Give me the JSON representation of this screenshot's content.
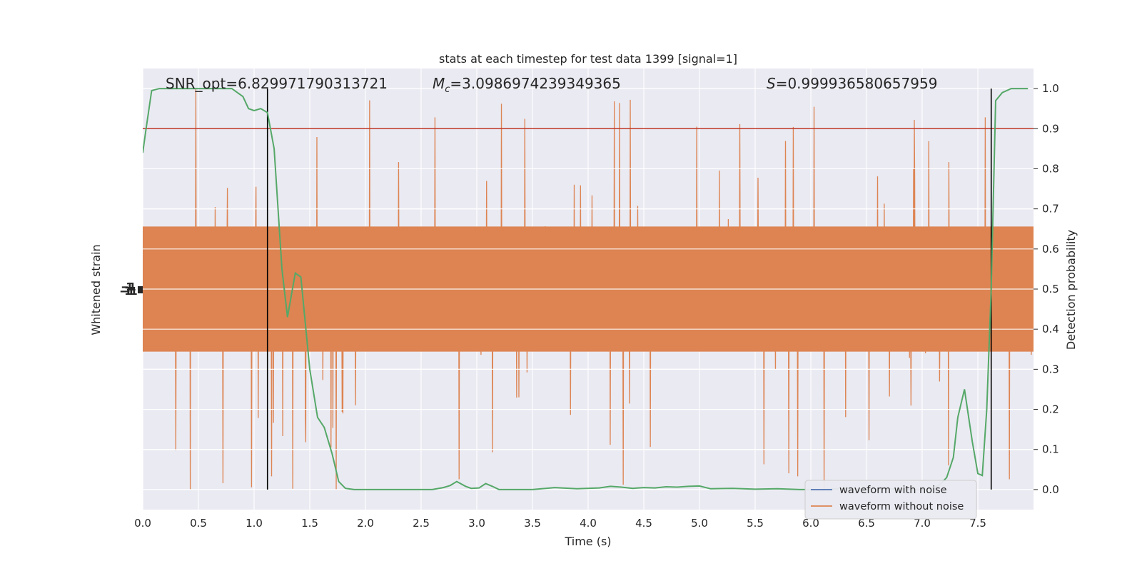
{
  "chart_data": {
    "type": "line",
    "title": "stats at each timestep for test data 1399 [signal=1]",
    "xlabel": "Time (s)",
    "ylabel_left": "Whitened strain",
    "ylabel_right": "Detection probability",
    "xlim": [
      0.0,
      8.0
    ],
    "ylim_right": [
      -0.05,
      1.05
    ],
    "x_ticks": [
      "0.0",
      "0.5",
      "1.0",
      "1.5",
      "2.0",
      "2.5",
      "3.0",
      "3.5",
      "4.0",
      "4.5",
      "5.0",
      "5.5",
      "6.0",
      "6.5",
      "7.0",
      "7.5"
    ],
    "right_ticks": [
      "0.0",
      "0.1",
      "0.2",
      "0.3",
      "0.4",
      "0.5",
      "0.6",
      "0.7",
      "0.8",
      "0.9",
      "1.0"
    ],
    "grid": true,
    "legend_position": "lower-right",
    "annotations": {
      "snr": "SNR_opt=6.829971790313721",
      "mc": "=3.0986974239349365",
      "s": "=0.999936580657959"
    },
    "threshold": {
      "y": 0.9,
      "color": "#c0392b"
    },
    "vertical_lines": [
      1.12,
      7.62
    ],
    "series": [
      {
        "name": "waveform with noise",
        "color": "#4c72b0",
        "kind": "strain",
        "values": []
      },
      {
        "name": "waveform without noise",
        "color": "#dd8452",
        "kind": "strain",
        "band_center": 0.5,
        "band_half_width": 0.2,
        "extreme_range": [
          0.0,
          1.0
        ]
      },
      {
        "name": "",
        "color": "#55a868",
        "kind": "probability",
        "x": [
          0.0,
          0.03,
          0.08,
          0.15,
          0.25,
          0.4,
          0.6,
          0.8,
          0.9,
          0.95,
          1.0,
          1.06,
          1.12,
          1.18,
          1.25,
          1.3,
          1.37,
          1.42,
          1.5,
          1.57,
          1.63,
          1.7,
          1.76,
          1.82,
          1.9,
          2.0,
          2.2,
          2.4,
          2.6,
          2.7,
          2.76,
          2.82,
          2.9,
          2.95,
          3.02,
          3.08,
          3.14,
          3.2,
          3.3,
          3.5,
          3.7,
          3.9,
          4.1,
          4.2,
          4.3,
          4.4,
          4.5,
          4.6,
          4.7,
          4.8,
          4.9,
          5.0,
          5.1,
          5.3,
          5.5,
          5.7,
          5.9,
          6.1,
          6.3,
          6.5,
          6.7,
          6.9,
          7.05,
          7.15,
          7.22,
          7.28,
          7.32,
          7.38,
          7.45,
          7.5,
          7.54,
          7.58,
          7.62,
          7.66,
          7.72,
          7.8,
          7.88,
          7.95
        ],
        "y": [
          0.84,
          0.9,
          0.995,
          1.0,
          1.0,
          1.0,
          1.0,
          1.0,
          0.98,
          0.95,
          0.945,
          0.95,
          0.94,
          0.85,
          0.55,
          0.43,
          0.54,
          0.53,
          0.3,
          0.18,
          0.155,
          0.09,
          0.02,
          0.003,
          0.0,
          0.0,
          0.0,
          0.0,
          0.0,
          0.005,
          0.01,
          0.02,
          0.008,
          0.003,
          0.004,
          0.015,
          0.008,
          0.0,
          0.0,
          0.0,
          0.005,
          0.002,
          0.004,
          0.008,
          0.006,
          0.003,
          0.005,
          0.004,
          0.007,
          0.006,
          0.008,
          0.009,
          0.002,
          0.003,
          0.001,
          0.002,
          0.0,
          0.0,
          0.003,
          0.0,
          0.002,
          0.0,
          0.0,
          0.01,
          0.03,
          0.08,
          0.18,
          0.25,
          0.12,
          0.04,
          0.035,
          0.2,
          0.5,
          0.97,
          0.99,
          1.0,
          1.0,
          1.0
        ]
      }
    ]
  }
}
